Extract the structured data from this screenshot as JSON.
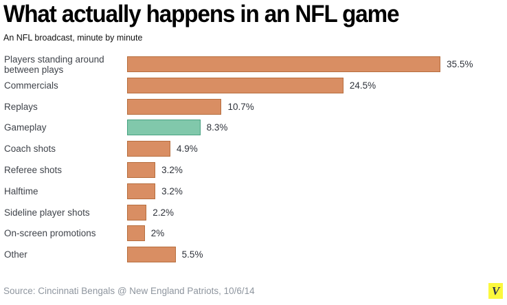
{
  "header": {
    "title": "What actually happens in an NFL game",
    "subtitle": "An NFL broadcast, minute by minute"
  },
  "footer": {
    "source": "Source: Cincinnati Bengals @ New England Patriots, 10/6/14",
    "logo_letter": "V"
  },
  "colors": {
    "bar_fill": "#d98e63",
    "bar_border": "#b66d3d",
    "highlight_fill": "#81c8ab",
    "highlight_border": "#47a181",
    "logo_bg": "#fbf83d",
    "logo_letter": "#2a3150"
  },
  "chart_data": {
    "type": "bar",
    "orientation": "horizontal",
    "title": "What actually happens in an NFL game",
    "subtitle": "An NFL broadcast, minute by minute",
    "categories": [
      "Players standing around between plays",
      "Commercials",
      "Replays",
      "Gameplay",
      "Coach shots",
      "Referee shots",
      "Halftime",
      "Sideline player shots",
      "On-screen promotions",
      "Other"
    ],
    "values": [
      35.5,
      24.5,
      10.7,
      8.3,
      4.9,
      3.2,
      3.2,
      2.2,
      2,
      5.5
    ],
    "value_labels": [
      "35.5%",
      "24.5%",
      "10.7%",
      "8.3%",
      "4.9%",
      "3.2%",
      "3.2%",
      "2.2%",
      "2%",
      "5.5%"
    ],
    "highlight_index": 3,
    "xlabel": "",
    "ylabel": "",
    "xlim": [
      0,
      40
    ],
    "grid": false,
    "legend": false
  }
}
